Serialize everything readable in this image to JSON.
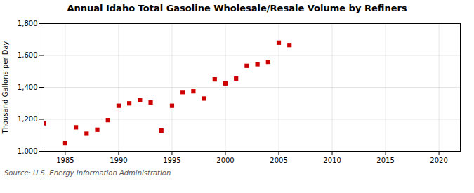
{
  "chart_data": {
    "type": "scatter",
    "title": "Annual Idaho Total Gasoline Wholesale/Resale Volume by Refiners",
    "ylabel": "Thousand Gallons per Day",
    "source": "Source: U.S. Energy Information Administration",
    "x": [
      1983,
      1985,
      1986,
      1987,
      1988,
      1989,
      1990,
      1991,
      1992,
      1993,
      1994,
      1995,
      1996,
      1997,
      1998,
      1999,
      2000,
      2001,
      2002,
      2003,
      2004,
      2005,
      2006
    ],
    "values": [
      1175,
      1050,
      1150,
      1110,
      1135,
      1195,
      1285,
      1300,
      1320,
      1305,
      1130,
      1285,
      1370,
      1375,
      1330,
      1450,
      1425,
      1455,
      1535,
      1545,
      1560,
      1680,
      1665
    ],
    "color": "#cc0000",
    "marker": "square",
    "xlim": [
      1983,
      2022
    ],
    "xticks": [
      1985,
      1990,
      1995,
      2000,
      2005,
      2010,
      2015,
      2020
    ],
    "ylim": [
      1000,
      1800
    ],
    "yticks": [
      {
        "value": 1000,
        "label": "1,000"
      },
      {
        "value": 1200,
        "label": "1,200"
      },
      {
        "value": 1400,
        "label": "1,400"
      },
      {
        "value": 1600,
        "label": "1,600"
      },
      {
        "value": 1800,
        "label": "1,800"
      }
    ],
    "grid": true
  }
}
